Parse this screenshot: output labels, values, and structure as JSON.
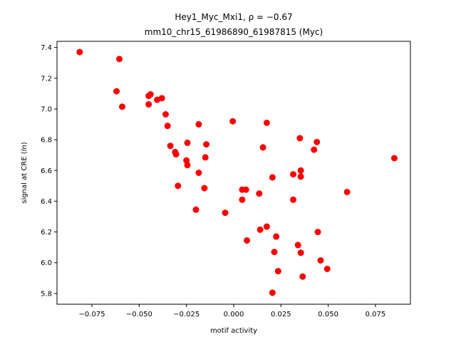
{
  "chart_data": {
    "type": "scatter",
    "title_line1": "Hey1_Myc_Mxi1, ρ = −0.67",
    "title_line2": "mm10_chr15_61986890_61987815 (Myc)",
    "xlabel": "motif activity",
    "ylabel": "signal at CRE (ln)",
    "xlim": [
      -0.0935,
      0.0935
    ],
    "ylim": [
      5.73,
      7.44
    ],
    "xticks": [
      -0.075,
      -0.05,
      -0.025,
      0.0,
      0.025,
      0.05,
      0.075
    ],
    "xtick_labels": [
      "−0.075",
      "−0.050",
      "−0.025",
      "0.000",
      "0.025",
      "0.050",
      "0.075"
    ],
    "yticks": [
      5.8,
      6.0,
      6.2,
      6.4,
      6.6,
      6.8,
      7.0,
      7.2,
      7.4
    ],
    "ytick_labels": [
      "5.8",
      "6.0",
      "6.2",
      "6.4",
      "6.6",
      "6.8",
      "7.0",
      "7.2",
      "7.4"
    ],
    "grid": false,
    "legend": "none",
    "marker_color": "#ff0000",
    "points": [
      {
        "x": -0.0815,
        "y": 7.37
      },
      {
        "x": -0.0605,
        "y": 7.325
      },
      {
        "x": -0.062,
        "y": 7.115
      },
      {
        "x": -0.059,
        "y": 7.015
      },
      {
        "x": -0.044,
        "y": 7.095
      },
      {
        "x": -0.045,
        "y": 7.085
      },
      {
        "x": -0.038,
        "y": 7.07
      },
      {
        "x": -0.0405,
        "y": 7.06
      },
      {
        "x": -0.045,
        "y": 7.03
      },
      {
        "x": -0.036,
        "y": 6.965
      },
      {
        "x": -0.035,
        "y": 6.89
      },
      {
        "x": -0.0185,
        "y": 6.9
      },
      {
        "x": -0.0005,
        "y": 6.92
      },
      {
        "x": 0.0175,
        "y": 6.91
      },
      {
        "x": 0.035,
        "y": 6.81
      },
      {
        "x": -0.0245,
        "y": 6.78
      },
      {
        "x": -0.0145,
        "y": 6.77
      },
      {
        "x": -0.0335,
        "y": 6.76
      },
      {
        "x": 0.044,
        "y": 6.785
      },
      {
        "x": 0.0155,
        "y": 6.75
      },
      {
        "x": 0.0425,
        "y": 6.735
      },
      {
        "x": -0.031,
        "y": 6.72
      },
      {
        "x": -0.0305,
        "y": 6.705
      },
      {
        "x": -0.015,
        "y": 6.685
      },
      {
        "x": 0.085,
        "y": 6.68
      },
      {
        "x": -0.025,
        "y": 6.665
      },
      {
        "x": -0.0245,
        "y": 6.635
      },
      {
        "x": 0.0355,
        "y": 6.6
      },
      {
        "x": -0.0185,
        "y": 6.585
      },
      {
        "x": 0.0315,
        "y": 6.575
      },
      {
        "x": 0.0355,
        "y": 6.56
      },
      {
        "x": 0.0205,
        "y": 6.555
      },
      {
        "x": -0.0295,
        "y": 6.5
      },
      {
        "x": -0.0155,
        "y": 6.485
      },
      {
        "x": 0.0045,
        "y": 6.475
      },
      {
        "x": 0.0065,
        "y": 6.475
      },
      {
        "x": 0.06,
        "y": 6.46
      },
      {
        "x": 0.0135,
        "y": 6.45
      },
      {
        "x": 0.0045,
        "y": 6.41
      },
      {
        "x": 0.0315,
        "y": 6.41
      },
      {
        "x": -0.02,
        "y": 6.345
      },
      {
        "x": -0.0045,
        "y": 6.325
      },
      {
        "x": 0.014,
        "y": 6.215
      },
      {
        "x": 0.0175,
        "y": 6.235
      },
      {
        "x": 0.0445,
        "y": 6.2
      },
      {
        "x": 0.0225,
        "y": 6.17
      },
      {
        "x": 0.007,
        "y": 6.145
      },
      {
        "x": 0.034,
        "y": 6.115
      },
      {
        "x": 0.0215,
        "y": 6.07
      },
      {
        "x": 0.0355,
        "y": 6.065
      },
      {
        "x": 0.046,
        "y": 6.015
      },
      {
        "x": 0.0495,
        "y": 5.96
      },
      {
        "x": 0.0235,
        "y": 5.945
      },
      {
        "x": 0.0365,
        "y": 5.91
      },
      {
        "x": 0.0205,
        "y": 5.805
      }
    ]
  }
}
